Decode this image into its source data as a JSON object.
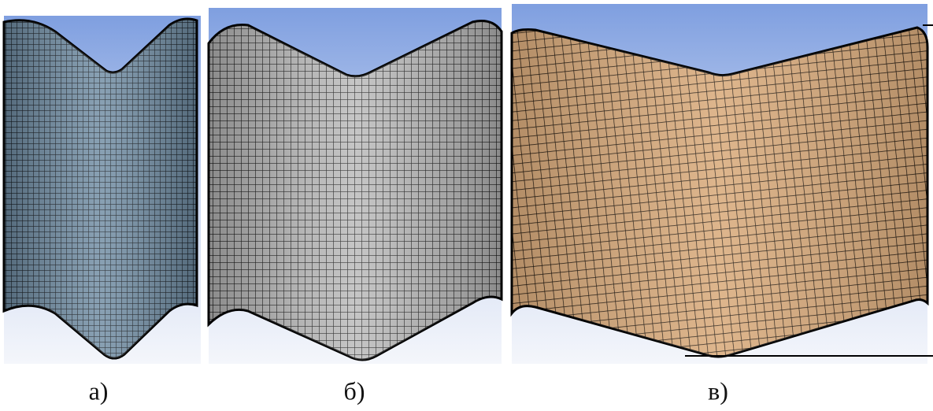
{
  "panels": [
    {
      "label": "а)"
    },
    {
      "label": "б)"
    },
    {
      "label": "в)"
    }
  ]
}
